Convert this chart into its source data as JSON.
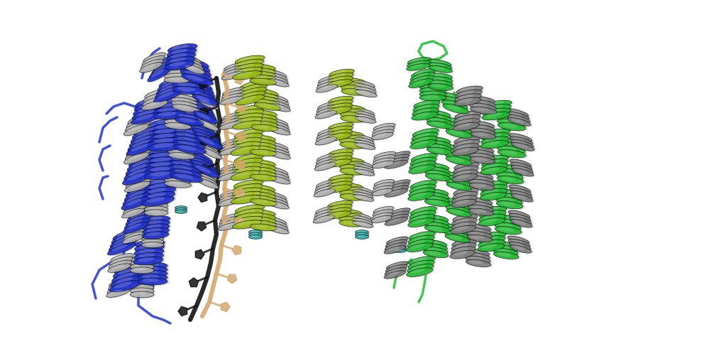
{
  "figsize": [
    10.23,
    5.01
  ],
  "dpi": 100,
  "background_color": "#ffffff",
  "colors": {
    "blue": "#2233cc",
    "gray": "#b0b0b0",
    "gray_dark": "#808080",
    "yellow_green": "#99bb11",
    "green_bright": "#22bb33",
    "green_dark": "#337722",
    "black": "#111111",
    "tan": "#d4a870",
    "teal": "#33aaaa",
    "white": "#ffffff"
  }
}
